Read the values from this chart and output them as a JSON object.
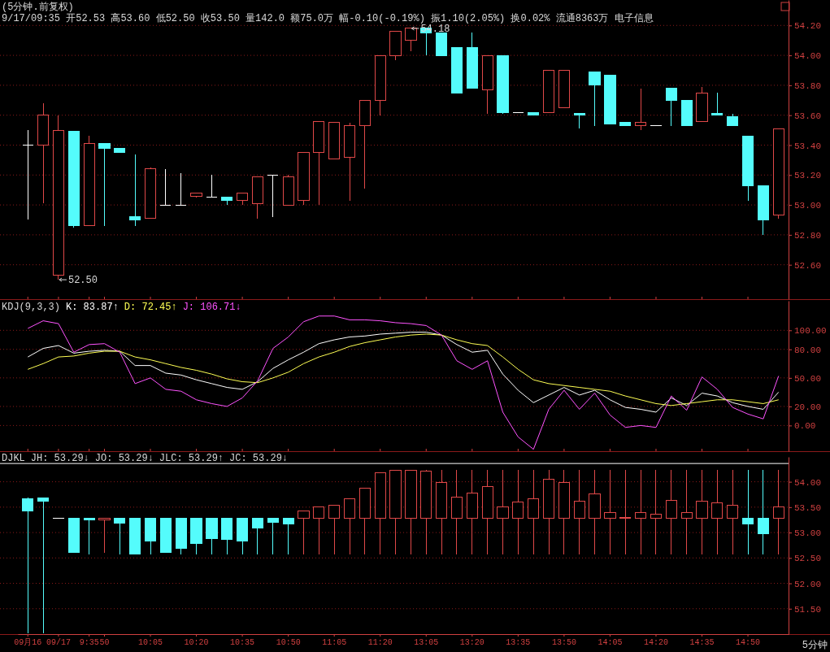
{
  "chart_data": [
    {
      "type": "candlestick",
      "title": "(5分钟.前复权)",
      "annotations": [
        "9/17/09:35 开52.53 高53.60 低52.50 收53.50 量142.0 额75.0万 幅-0.10(-0.19%) 振1.10(2.05%) 换0.02% 流通8363万 电子信息",
        {
          "text": "52.50",
          "x": "09/17",
          "y": 52.5
        },
        "54.18"
      ],
      "categories": [
        "09月16",
        null,
        "09/17",
        null,
        "9:35",
        "50",
        null,
        null,
        "10:05",
        null,
        null,
        "10:20",
        null,
        null,
        "10:35",
        null,
        null,
        "10:50",
        null,
        null,
        "11:05",
        null,
        null,
        "11:20",
        null,
        null,
        "13:05",
        null,
        null,
        "13:20",
        null,
        null,
        "13:35",
        null,
        null,
        "13:50",
        null,
        null,
        "14:05",
        null,
        null,
        "14:20",
        null,
        null,
        "14:35",
        null,
        null,
        "14:50",
        null,
        null
      ],
      "ohlc": [
        [
          53.4,
          53.5,
          52.9,
          53.4
        ],
        [
          53.4,
          53.68,
          53.01,
          53.6
        ],
        [
          52.53,
          53.6,
          52.5,
          53.5
        ],
        [
          53.49,
          53.49,
          52.85,
          52.86
        ],
        [
          52.86,
          53.46,
          52.86,
          53.41
        ],
        [
          53.41,
          53.41,
          52.86,
          53.38
        ],
        [
          53.38,
          53.38,
          53.35,
          53.35
        ],
        [
          52.92,
          53.34,
          52.86,
          52.9
        ],
        [
          52.91,
          53.25,
          52.91,
          53.24
        ],
        [
          53.0,
          53.24,
          53.0,
          53.0
        ],
        [
          53.0,
          53.21,
          53.0,
          53.0
        ],
        [
          53.06,
          53.08,
          53.05,
          53.08
        ],
        [
          53.05,
          53.2,
          53.05,
          53.05
        ],
        [
          53.05,
          53.05,
          53.0,
          53.03
        ],
        [
          53.03,
          53.08,
          53.0,
          53.08
        ],
        [
          53.01,
          53.19,
          52.91,
          53.19
        ],
        [
          53.2,
          53.2,
          52.92,
          53.2
        ],
        [
          53.0,
          53.2,
          53.0,
          53.19
        ],
        [
          53.03,
          53.35,
          53.0,
          53.35
        ],
        [
          53.35,
          53.56,
          53.0,
          53.56
        ],
        [
          53.31,
          53.55,
          53.31,
          53.55
        ],
        [
          53.32,
          53.55,
          53.03,
          53.53
        ],
        [
          53.53,
          53.7,
          53.11,
          53.7
        ],
        [
          53.7,
          54.0,
          53.6,
          54.0
        ],
        [
          54.0,
          54.16,
          53.97,
          54.16
        ],
        [
          54.1,
          54.18,
          54.03,
          54.18
        ],
        [
          54.18,
          54.18,
          54.0,
          54.15
        ],
        [
          54.15,
          54.15,
          54.0,
          54.0
        ],
        [
          54.05,
          54.05,
          53.75,
          53.75
        ],
        [
          54.05,
          54.15,
          53.78,
          53.78
        ],
        [
          53.77,
          54.0,
          53.61,
          54.0
        ],
        [
          54.0,
          54.0,
          53.61,
          53.62
        ],
        [
          53.62,
          53.62,
          53.62,
          53.62
        ],
        [
          53.62,
          53.62,
          53.6,
          53.6
        ],
        [
          53.62,
          53.9,
          53.62,
          53.9
        ],
        [
          53.65,
          53.9,
          53.65,
          53.9
        ],
        [
          53.61,
          53.61,
          53.51,
          53.6
        ],
        [
          53.89,
          53.89,
          53.53,
          53.8
        ],
        [
          53.87,
          53.87,
          53.54,
          53.54
        ],
        [
          53.55,
          53.55,
          53.53,
          53.53
        ],
        [
          53.53,
          53.78,
          53.5,
          53.55
        ],
        [
          53.53,
          53.53,
          53.53,
          53.53
        ],
        [
          53.78,
          53.78,
          53.53,
          53.7
        ],
        [
          53.7,
          53.7,
          53.53,
          53.53
        ],
        [
          53.56,
          53.79,
          53.56,
          53.75
        ],
        [
          53.61,
          53.75,
          53.6,
          53.6
        ],
        [
          53.59,
          53.61,
          53.53,
          53.53
        ],
        [
          53.46,
          53.46,
          53.03,
          53.13
        ],
        [
          53.13,
          53.13,
          52.8,
          52.9
        ],
        [
          52.93,
          53.51,
          52.91,
          53.51
        ]
      ],
      "ylim": [
        52.37,
        54.37
      ],
      "yticks": [
        {
          "value": 52.6,
          "label": "52.60"
        },
        {
          "value": 52.8,
          "label": "52.80"
        },
        {
          "value": 53.0,
          "label": "53.00"
        },
        {
          "value": 53.2,
          "label": "53.20"
        },
        {
          "value": 53.4,
          "label": "53.40"
        },
        {
          "value": 53.6,
          "label": "53.60"
        },
        {
          "value": 53.8,
          "label": "53.80"
        },
        {
          "value": 54.0,
          "label": "54.00"
        },
        {
          "value": 54.2,
          "label": "54.20"
        }
      ],
      "grid": "y",
      "tick_labels": "y"
    },
    {
      "type": "line",
      "title": "KDJ(9,3,3)",
      "categories": [
        "09月16",
        null,
        "09/17",
        null,
        "9:35",
        "50",
        null,
        null,
        "10:05",
        null,
        null,
        "10:20",
        null,
        null,
        "10:35",
        null,
        null,
        "10:50",
        null,
        null,
        "11:05",
        null,
        null,
        "11:20",
        null,
        null,
        "13:05",
        null,
        null,
        "13:20",
        null,
        null,
        "13:35",
        null,
        null,
        "13:50",
        null,
        null,
        "14:05",
        null,
        null,
        "14:20",
        null,
        null,
        "14:35",
        null,
        null,
        "14:50",
        null,
        null
      ],
      "series": [
        {
          "name": "K: 83.87↑",
          "color": "#ffffff",
          "values": [
            72,
            81,
            84,
            76,
            78,
            79,
            78,
            63,
            63,
            55,
            53,
            48,
            44,
            40,
            38,
            46,
            60,
            69,
            77,
            86,
            90,
            93,
            94,
            96,
            97,
            98,
            98,
            95,
            85,
            77,
            79,
            54,
            37,
            24,
            32,
            40,
            32,
            37,
            27,
            19,
            17,
            14,
            29,
            21,
            34,
            31,
            24,
            20,
            17,
            35
          ]
        },
        {
          "name": "D: 72.45↑",
          "color": "#ffff54",
          "values": [
            59,
            65,
            72,
            73,
            76,
            78,
            78,
            72,
            69,
            65,
            61,
            58,
            54,
            49,
            46,
            45,
            50,
            56,
            65,
            72,
            77,
            83,
            87,
            90,
            93,
            95,
            96,
            95,
            90,
            86,
            84,
            72,
            59,
            48,
            44,
            42,
            40,
            38,
            36,
            31,
            27,
            23,
            21,
            23,
            25,
            27,
            27,
            25,
            23,
            27
          ]
        },
        {
          "name": "J: 106.71↓",
          "color": "#ff54ff",
          "values": [
            102,
            110,
            107,
            77,
            85,
            86,
            77,
            44,
            50,
            38,
            36,
            27,
            23,
            20,
            29,
            47,
            81,
            93,
            109,
            115,
            115,
            111,
            111,
            110,
            108,
            107,
            105,
            95,
            68,
            59,
            68,
            14,
            -12,
            -25,
            17,
            37,
            17,
            34,
            11,
            -2,
            0,
            -2,
            31,
            16,
            51,
            38,
            19,
            12,
            7,
            52
          ]
        }
      ],
      "ylim": [
        -27,
        131
      ],
      "yticks": [
        {
          "value": 0,
          "label": "0.00"
        },
        {
          "value": 20,
          "label": "20.00"
        },
        {
          "value": 50,
          "label": "50.00"
        },
        {
          "value": 80,
          "label": "80.00"
        },
        {
          "value": 100,
          "label": "100.00"
        }
      ],
      "grid": "y",
      "tick_labels": "y",
      "legend": "top left"
    },
    {
      "type": "candlestick",
      "title": "DJKL",
      "xlabel": "5分钟",
      "annotations": [
        "JH: 53.29↓",
        "JO: 53.29↓",
        "JLC: 53.29↑",
        "JC: 53.29↓"
      ],
      "categories": [
        "09月16",
        null,
        "09/17",
        null,
        "9:35",
        "50",
        null,
        null,
        "10:05",
        null,
        null,
        "10:20",
        null,
        null,
        "10:35",
        null,
        null,
        "10:50",
        null,
        null,
        "11:05",
        null,
        null,
        "11:20",
        null,
        null,
        "13:05",
        null,
        null,
        "13:20",
        null,
        null,
        "13:35",
        null,
        null,
        "13:50",
        null,
        null,
        "14:05",
        null,
        null,
        "14:20",
        null,
        null,
        "14:35",
        null,
        null,
        "14:50",
        null,
        null
      ],
      "ohlc": [
        [
          53.67,
          53.69,
          51.02,
          53.43
        ],
        [
          53.68,
          53.68,
          51.02,
          53.61
        ],
        [
          53.28,
          53.28,
          53.28,
          53.28
        ],
        [
          53.28,
          53.28,
          52.61,
          52.61
        ],
        [
          53.28,
          53.28,
          52.57,
          53.25
        ],
        [
          53.25,
          53.28,
          52.6,
          53.28
        ],
        [
          53.28,
          53.28,
          52.57,
          53.19
        ],
        [
          53.28,
          53.28,
          52.58,
          52.58
        ],
        [
          53.28,
          53.28,
          52.57,
          52.84
        ],
        [
          53.28,
          53.28,
          52.61,
          52.61
        ],
        [
          53.28,
          53.28,
          52.57,
          52.69
        ],
        [
          53.28,
          53.28,
          52.57,
          52.79
        ],
        [
          53.28,
          53.28,
          52.57,
          52.88
        ],
        [
          53.28,
          53.28,
          52.57,
          52.86
        ],
        [
          53.28,
          53.28,
          52.57,
          52.84
        ],
        [
          53.28,
          53.28,
          52.57,
          53.09
        ],
        [
          53.28,
          53.28,
          52.57,
          53.2
        ],
        [
          53.28,
          53.28,
          52.57,
          53.17
        ],
        [
          53.28,
          53.43,
          52.57,
          53.43
        ],
        [
          53.28,
          53.5,
          52.57,
          53.5
        ],
        [
          53.28,
          53.54,
          52.57,
          53.54
        ],
        [
          53.28,
          53.67,
          52.57,
          53.67
        ],
        [
          53.28,
          53.87,
          52.57,
          53.87
        ],
        [
          53.28,
          54.18,
          52.57,
          54.18
        ],
        [
          53.28,
          54.23,
          52.57,
          54.23
        ],
        [
          53.28,
          54.23,
          52.57,
          54.23
        ],
        [
          53.28,
          54.23,
          52.57,
          54.21
        ],
        [
          53.28,
          54.23,
          52.57,
          53.98
        ],
        [
          53.28,
          54.23,
          52.57,
          53.69
        ],
        [
          53.28,
          54.23,
          52.57,
          53.77
        ],
        [
          53.28,
          54.23,
          52.57,
          53.9
        ],
        [
          53.28,
          54.23,
          52.57,
          53.51
        ],
        [
          53.28,
          54.23,
          52.57,
          53.6
        ],
        [
          53.28,
          54.23,
          52.57,
          53.67
        ],
        [
          53.28,
          54.23,
          52.57,
          54.05
        ],
        [
          53.28,
          54.23,
          52.57,
          53.98
        ],
        [
          53.28,
          54.23,
          52.57,
          53.61
        ],
        [
          53.28,
          54.23,
          52.57,
          53.76
        ],
        [
          53.28,
          54.23,
          52.57,
          53.39
        ],
        [
          53.28,
          54.23,
          52.57,
          53.3
        ],
        [
          53.28,
          54.23,
          52.57,
          53.4
        ],
        [
          53.28,
          54.23,
          52.57,
          53.36
        ],
        [
          53.28,
          54.23,
          52.57,
          53.63
        ],
        [
          53.28,
          54.23,
          52.57,
          53.39
        ],
        [
          53.28,
          54.23,
          52.57,
          53.62
        ],
        [
          53.28,
          54.23,
          52.57,
          53.58
        ],
        [
          53.28,
          54.23,
          52.57,
          53.54
        ],
        [
          53.28,
          54.23,
          52.57,
          53.17
        ],
        [
          53.28,
          54.23,
          52.57,
          52.97
        ],
        [
          53.28,
          54.23,
          52.57,
          53.5
        ]
      ],
      "ylim": [
        51.0,
        54.49
      ],
      "yticks": [
        {
          "value": 51.5,
          "label": "51.50"
        },
        {
          "value": 52.0,
          "label": "52.00"
        },
        {
          "value": 52.5,
          "label": "52.50"
        },
        {
          "value": 53.0,
          "label": "53.00"
        },
        {
          "value": 53.5,
          "label": "53.50"
        },
        {
          "value": 54.0,
          "label": "54.00"
        }
      ],
      "ref_lines": [
        {
          "axis": "y",
          "value": 54.36,
          "color": "#ffffff"
        }
      ],
      "grid": "y"
    }
  ]
}
